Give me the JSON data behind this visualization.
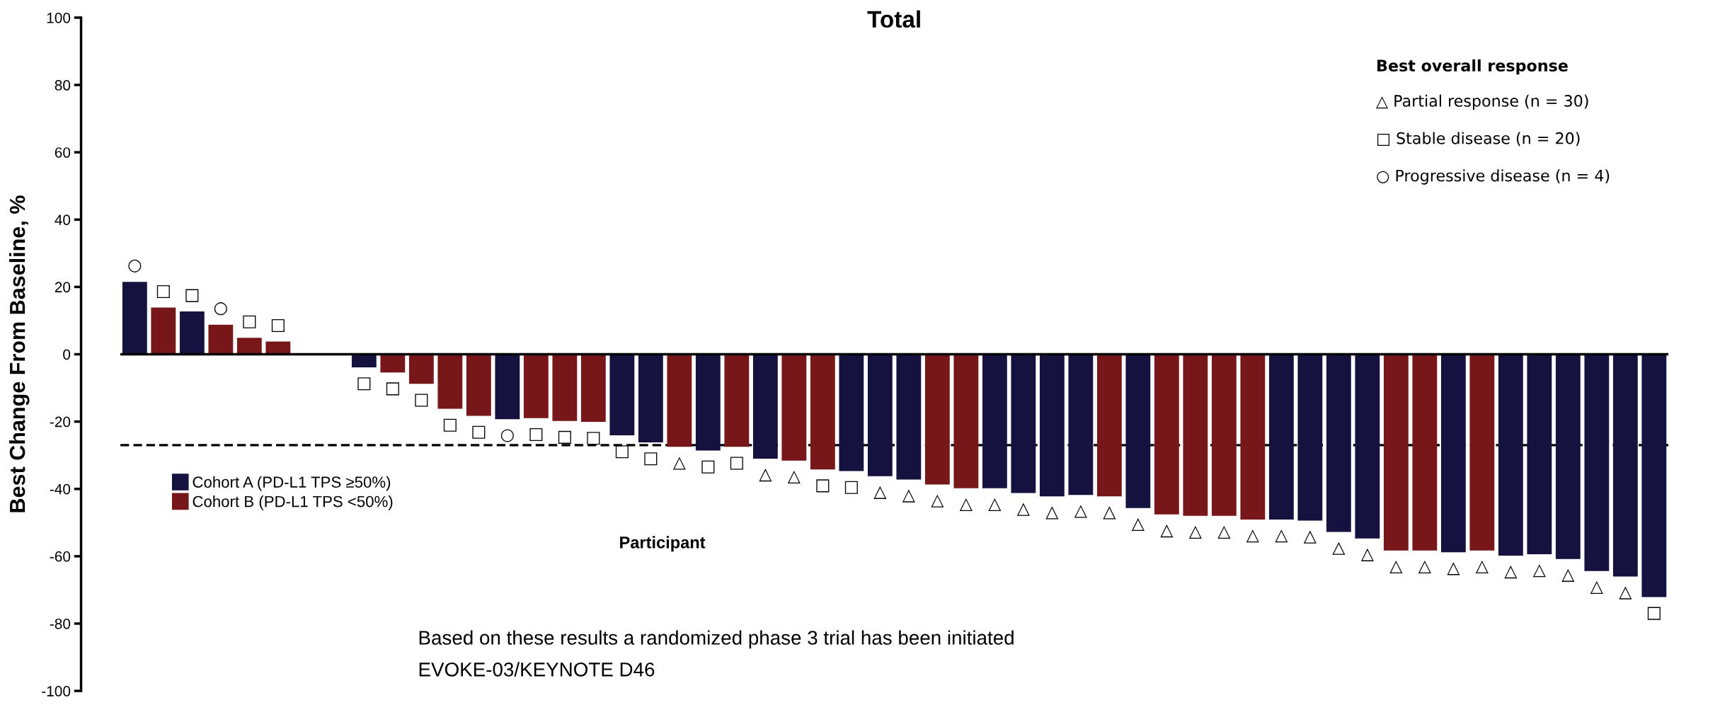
{
  "chart_data": {
    "type": "bar",
    "title": "Total",
    "xlabel": "Participant",
    "ylabel": "Best Change From Baseline, %",
    "categories": [
      null,
      null,
      null,
      null,
      null,
      null,
      null,
      null,
      null,
      null,
      null,
      null,
      null,
      null,
      null,
      null,
      null,
      null,
      null,
      null,
      null,
      null,
      null,
      null,
      null,
      null,
      null,
      null,
      null,
      null,
      null,
      null,
      null,
      null,
      null,
      null,
      null,
      null,
      null,
      null,
      null,
      null,
      null,
      null,
      null,
      null,
      null,
      null,
      null,
      null,
      null,
      null,
      null,
      null
    ],
    "series": [
      {
        "name": "Cohort A (PD-L1 TPS ≥50%)",
        "color": "#15123f",
        "values": [
          21.5,
          null,
          12.7,
          null,
          null,
          null,
          null,
          null,
          -3.9,
          null,
          null,
          null,
          null,
          -19.3,
          null,
          null,
          null,
          -24.1,
          -26.2,
          null,
          -28.6,
          null,
          -31.0,
          null,
          null,
          -34.7,
          -36.2,
          -37.2,
          null,
          null,
          -39.8,
          -41.2,
          -42.2,
          -41.8,
          null,
          -45.7,
          null,
          null,
          null,
          null,
          -49.1,
          -49.4,
          -52.8,
          -54.7,
          null,
          null,
          -58.8,
          null,
          -59.8,
          -59.4,
          -60.8,
          -64.4,
          -66.0,
          -72.1
        ],
        "value_labels": [
          "○",
          null,
          "□",
          null,
          null,
          null,
          null,
          null,
          "□",
          null,
          null,
          null,
          null,
          "○",
          null,
          null,
          null,
          "□",
          "□",
          null,
          "□",
          null,
          "△",
          null,
          null,
          "□",
          "△",
          "△",
          null,
          null,
          "△",
          "△",
          "△",
          "△",
          null,
          "△",
          null,
          null,
          null,
          null,
          "△",
          "△",
          "△",
          "△",
          null,
          null,
          "△",
          null,
          "△",
          "△",
          "△",
          "△",
          "△",
          "□"
        ]
      },
      {
        "name": "Cohort B (PD-L1 TPS <50%)",
        "color": "#771719",
        "values": [
          null,
          13.9,
          null,
          8.8,
          4.9,
          3.8,
          null,
          null,
          null,
          -5.4,
          -8.8,
          -16.2,
          -18.3,
          null,
          -19.0,
          -19.8,
          -20.1,
          null,
          null,
          -27.5,
          null,
          -27.5,
          null,
          -31.6,
          -34.2,
          null,
          null,
          null,
          -38.7,
          -39.8,
          null,
          null,
          null,
          null,
          -42.2,
          null,
          -47.6,
          -48.0,
          -48.0,
          -49.1,
          null,
          null,
          null,
          null,
          -58.3,
          -58.3,
          null,
          -58.3,
          null,
          null,
          null,
          null,
          null,
          null
        ],
        "value_labels": [
          null,
          "□",
          null,
          "○",
          "□",
          "□",
          null,
          null,
          null,
          "□",
          "□",
          "□",
          "□",
          null,
          "□",
          "□",
          "□",
          null,
          null,
          "△",
          null,
          "□",
          null,
          "△",
          "□",
          null,
          null,
          null,
          "△",
          "△",
          null,
          null,
          null,
          null,
          "△",
          null,
          "△",
          "△",
          "△",
          "△",
          null,
          null,
          null,
          null,
          "△",
          "△",
          null,
          "△",
          null,
          null,
          null,
          null,
          null,
          null
        ]
      }
    ],
    "ylim": [
      -100,
      100
    ],
    "yticks": [
      -100,
      -80,
      -60,
      -40,
      -20,
      0,
      20,
      40,
      60,
      80,
      100
    ],
    "ref_lines": [
      {
        "axis": "y",
        "value": 0,
        "color": "#000000",
        "line_style": "solid"
      },
      {
        "axis": "y",
        "value": -27,
        "color": "#000000",
        "line_style": "dashed"
      }
    ],
    "legend": "left",
    "grid": false,
    "tick_labels": "y",
    "annotations": [
      "Best overall response",
      "△ Partial response (n = 30)",
      "□ Stable disease (n = 20)",
      "○ Progressive disease (n = 4)",
      "Based on these results a randomized phase 3 trial has been initiated",
      "EVOKE-03/KEYNOTE D46"
    ]
  }
}
